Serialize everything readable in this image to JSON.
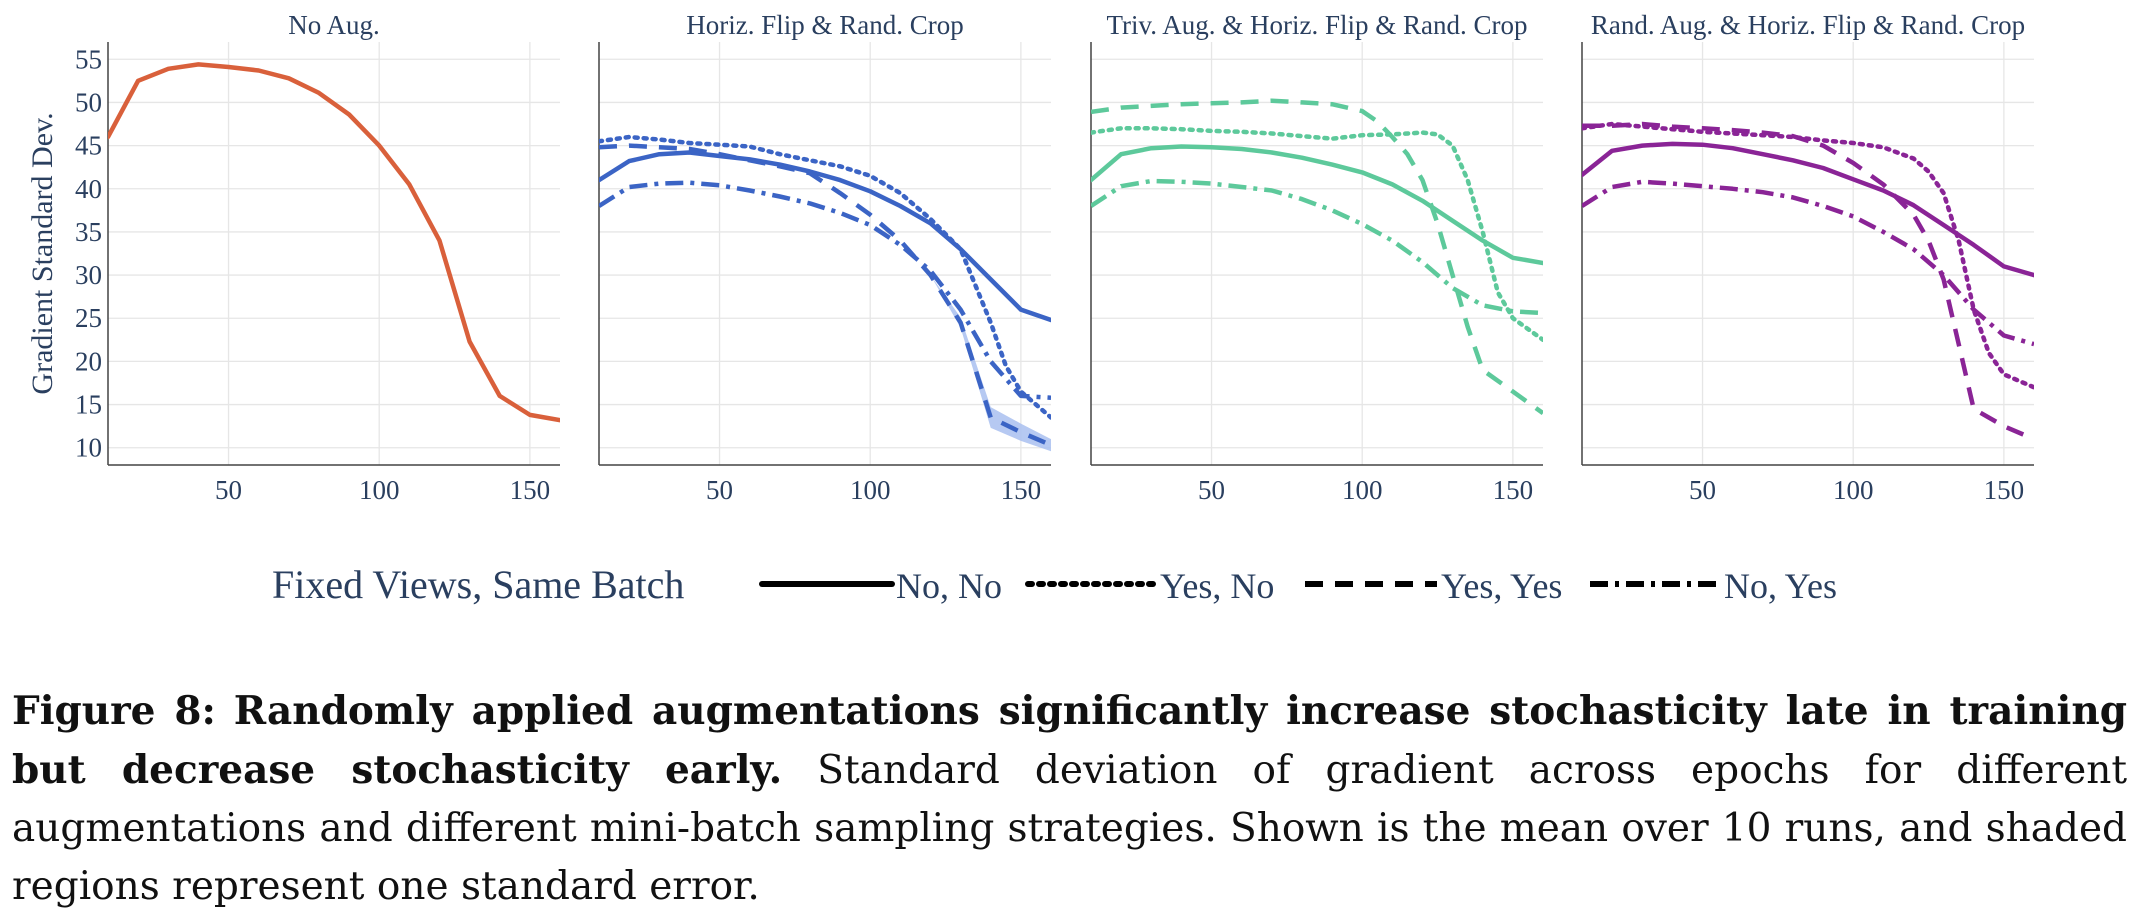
{
  "figure": {
    "legend": {
      "title": "Fixed Views, Same Batch",
      "entries": [
        {
          "label": "No, No",
          "dash": "solid"
        },
        {
          "label": "Yes, No",
          "dash": "dot"
        },
        {
          "label": "Yes, Yes",
          "dash": "dash"
        },
        {
          "label": "No, Yes",
          "dash": "dashdot"
        }
      ]
    },
    "caption": {
      "label": "Figure 8:",
      "bold": "Randomly applied augmentations significantly increase stochasticity late in training but decrease stochasticity early.",
      "text": "Standard deviation of gradient across epochs for different augmentations and different mini-batch sampling strategies. Shown is the mean over 10 runs, and shaded regions represent one standard error."
    }
  },
  "chart_data": [
    {
      "type": "line",
      "title": "No Aug.",
      "ylabel": "Gradient Standard Dev.",
      "xlabel": "",
      "xlim": [
        10,
        160
      ],
      "ylim": [
        8,
        57
      ],
      "xticks": [
        50,
        100,
        150
      ],
      "yticks": [
        10,
        15,
        20,
        25,
        30,
        35,
        40,
        45,
        50,
        55
      ],
      "grid": true,
      "color": "#D9603B",
      "series": [
        {
          "name": "No, No",
          "dash": "solid",
          "x": [
            10,
            20,
            30,
            40,
            50,
            60,
            70,
            80,
            90,
            100,
            110,
            120,
            130,
            140,
            150,
            160
          ],
          "y": [
            46,
            52.5,
            53.9,
            54.4,
            54.1,
            53.7,
            52.8,
            51.1,
            48.6,
            45,
            40.5,
            34,
            22.3,
            16,
            13.8,
            13.2
          ]
        }
      ]
    },
    {
      "type": "line",
      "title": "Horiz. Flip & Rand. Crop",
      "xlabel": "",
      "xlim": [
        10,
        160
      ],
      "ylim": [
        8,
        57
      ],
      "xticks": [
        50,
        100,
        150
      ],
      "grid": true,
      "color": "#3B64C5",
      "shade": "#a9bff0",
      "series": [
        {
          "name": "No, No",
          "dash": "solid",
          "x": [
            10,
            20,
            30,
            40,
            50,
            60,
            70,
            80,
            90,
            100,
            110,
            120,
            130,
            140,
            150,
            160
          ],
          "y": [
            41,
            43.2,
            44,
            44.2,
            43.8,
            43.4,
            42.8,
            42,
            41,
            39.7,
            38,
            36,
            33,
            29.5,
            26,
            24.8
          ]
        },
        {
          "name": "Yes, No",
          "dash": "dot",
          "x": [
            10,
            20,
            30,
            40,
            50,
            60,
            70,
            80,
            90,
            100,
            110,
            120,
            130,
            140,
            145,
            150,
            160
          ],
          "y": [
            45.5,
            46,
            45.7,
            45.3,
            45.1,
            44.9,
            44,
            43.3,
            42.6,
            41.5,
            39.5,
            36.5,
            33,
            24.5,
            19.5,
            16.5,
            13.5
          ]
        },
        {
          "name": "Yes, Yes",
          "dash": "dash",
          "x": [
            10,
            20,
            30,
            40,
            50,
            60,
            70,
            80,
            90,
            100,
            110,
            120,
            130,
            140,
            150,
            160
          ],
          "y": [
            44.8,
            45,
            44.8,
            44.6,
            44,
            43.3,
            42.6,
            41.8,
            39.5,
            37,
            34,
            30,
            24.5,
            13.5,
            11.8,
            10.3
          ],
          "err": [
            0,
            0,
            0,
            0,
            0,
            0,
            0,
            0,
            0,
            0,
            0,
            0,
            0.6,
            1.2,
            1,
            0.7
          ]
        },
        {
          "name": "No, Yes",
          "dash": "dashdot",
          "x": [
            10,
            20,
            30,
            40,
            50,
            60,
            70,
            80,
            90,
            100,
            110,
            120,
            130,
            140,
            150,
            160
          ],
          "y": [
            38,
            40.2,
            40.6,
            40.7,
            40.4,
            39.8,
            39.1,
            38.3,
            37.2,
            35.8,
            33.5,
            30.5,
            26,
            20,
            16,
            15.8
          ]
        }
      ]
    },
    {
      "type": "line",
      "title": "Triv. Aug. & Horiz. Flip & Rand. Crop",
      "xlabel": "",
      "xlim": [
        10,
        160
      ],
      "ylim": [
        8,
        57
      ],
      "xticks": [
        50,
        100,
        150
      ],
      "grid": true,
      "color": "#5DC99B",
      "series": [
        {
          "name": "No, No",
          "dash": "solid",
          "x": [
            10,
            20,
            30,
            40,
            50,
            60,
            70,
            80,
            90,
            100,
            110,
            120,
            130,
            140,
            150,
            160
          ],
          "y": [
            41,
            44,
            44.7,
            44.9,
            44.8,
            44.6,
            44.2,
            43.6,
            42.8,
            41.9,
            40.5,
            38.6,
            36.3,
            34,
            32,
            31.4
          ]
        },
        {
          "name": "Yes, No",
          "dash": "dot",
          "x": [
            10,
            20,
            30,
            40,
            50,
            60,
            70,
            80,
            90,
            100,
            110,
            120,
            125,
            130,
            135,
            140,
            145,
            150,
            160
          ],
          "y": [
            46.5,
            47,
            47,
            46.9,
            46.7,
            46.6,
            46.4,
            46.1,
            45.8,
            46.2,
            46.3,
            46.5,
            46.3,
            45,
            41,
            35,
            28,
            25,
            22.5
          ]
        },
        {
          "name": "Yes, Yes",
          "dash": "dash",
          "x": [
            10,
            20,
            30,
            40,
            50,
            60,
            70,
            80,
            90,
            100,
            105,
            110,
            115,
            120,
            125,
            130,
            135,
            140,
            150,
            160
          ],
          "y": [
            48.9,
            49.4,
            49.6,
            49.8,
            49.9,
            50,
            50.2,
            50,
            49.8,
            49,
            47.8,
            46,
            44,
            41,
            36,
            30,
            24,
            19,
            16.5,
            14
          ]
        },
        {
          "name": "No, Yes",
          "dash": "dashdot",
          "x": [
            10,
            20,
            30,
            40,
            50,
            60,
            70,
            80,
            90,
            100,
            110,
            120,
            130,
            140,
            150,
            160
          ],
          "y": [
            38,
            40.3,
            40.9,
            40.8,
            40.6,
            40.2,
            39.8,
            38.8,
            37.5,
            35.9,
            34,
            31.5,
            28.5,
            26.5,
            25.8,
            25.6
          ]
        }
      ]
    },
    {
      "type": "line",
      "title": "Rand. Aug. & Horiz. Flip & Rand. Crop",
      "xlabel": "",
      "xlim": [
        10,
        160
      ],
      "ylim": [
        8,
        57
      ],
      "xticks": [
        50,
        100,
        150
      ],
      "grid": true,
      "color": "#8A2496",
      "shade": "#d3a6da",
      "series": [
        {
          "name": "No, No",
          "dash": "solid",
          "x": [
            10,
            20,
            30,
            40,
            50,
            60,
            70,
            80,
            90,
            100,
            110,
            120,
            130,
            140,
            150,
            160
          ],
          "y": [
            41.6,
            44.4,
            45,
            45.2,
            45.1,
            44.7,
            44,
            43.3,
            42.4,
            41.1,
            39.8,
            38.1,
            35.8,
            33.5,
            31,
            30
          ]
        },
        {
          "name": "Yes, No",
          "dash": "dot",
          "x": [
            10,
            20,
            30,
            40,
            50,
            60,
            70,
            80,
            90,
            100,
            110,
            120,
            125,
            130,
            135,
            140,
            145,
            150,
            160
          ],
          "y": [
            47,
            47.5,
            47.2,
            46.9,
            46.6,
            46.4,
            46.2,
            46,
            45.6,
            45.3,
            44.8,
            43.5,
            42,
            39.5,
            34,
            26,
            21,
            18.5,
            17
          ]
        },
        {
          "name": "Yes, Yes",
          "dash": "dash",
          "x": [
            10,
            20,
            30,
            40,
            50,
            60,
            70,
            80,
            90,
            100,
            110,
            120,
            125,
            130,
            135,
            140,
            150,
            160
          ],
          "y": [
            47.3,
            47.3,
            47.5,
            47.2,
            47,
            46.8,
            46.5,
            46.1,
            45,
            43,
            40.5,
            37,
            34,
            29.5,
            22,
            14.5,
            12.5,
            11
          ]
        },
        {
          "name": "No, Yes",
          "dash": "dashdot",
          "x": [
            10,
            20,
            30,
            40,
            50,
            60,
            70,
            80,
            90,
            100,
            110,
            120,
            130,
            140,
            150,
            160
          ],
          "y": [
            38,
            40.2,
            40.8,
            40.6,
            40.3,
            40,
            39.6,
            39,
            38,
            36.8,
            35,
            33,
            30,
            26,
            23,
            22
          ]
        }
      ]
    }
  ]
}
